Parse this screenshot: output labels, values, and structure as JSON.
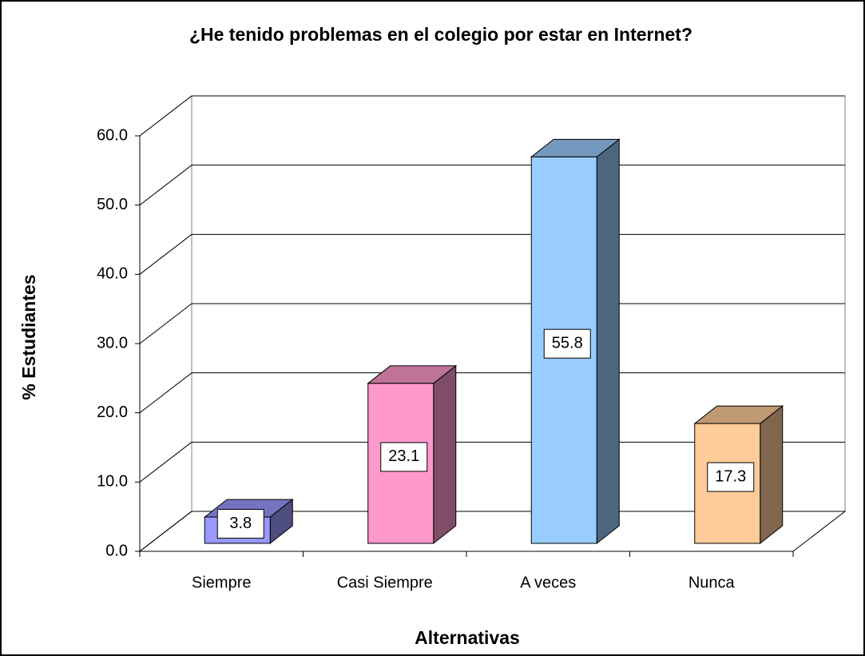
{
  "chart_data": {
    "type": "bar",
    "title": "¿He tenido problemas en el colegio por estar en Internet?",
    "x_label": "Alternativas",
    "y_label": "% Estudiantes",
    "categories": [
      "Siempre",
      "Casi Siempre",
      "A veces",
      "Nunca"
    ],
    "values": [
      3.8,
      23.1,
      55.8,
      17.3
    ],
    "colors": [
      "#9999ff",
      "#ff99cc",
      "#99ccff",
      "#ffcc99"
    ],
    "ylim": [
      0,
      60
    ],
    "yticks": [
      {
        "value": 0,
        "label": "0.0"
      },
      {
        "value": 10,
        "label": "10.0"
      },
      {
        "value": 20,
        "label": "20.0"
      },
      {
        "value": 30,
        "label": "30.0"
      },
      {
        "value": 40,
        "label": "40.0"
      },
      {
        "value": 50,
        "label": "50.0"
      },
      {
        "value": 60,
        "label": "60.0"
      }
    ],
    "grid": true
  }
}
